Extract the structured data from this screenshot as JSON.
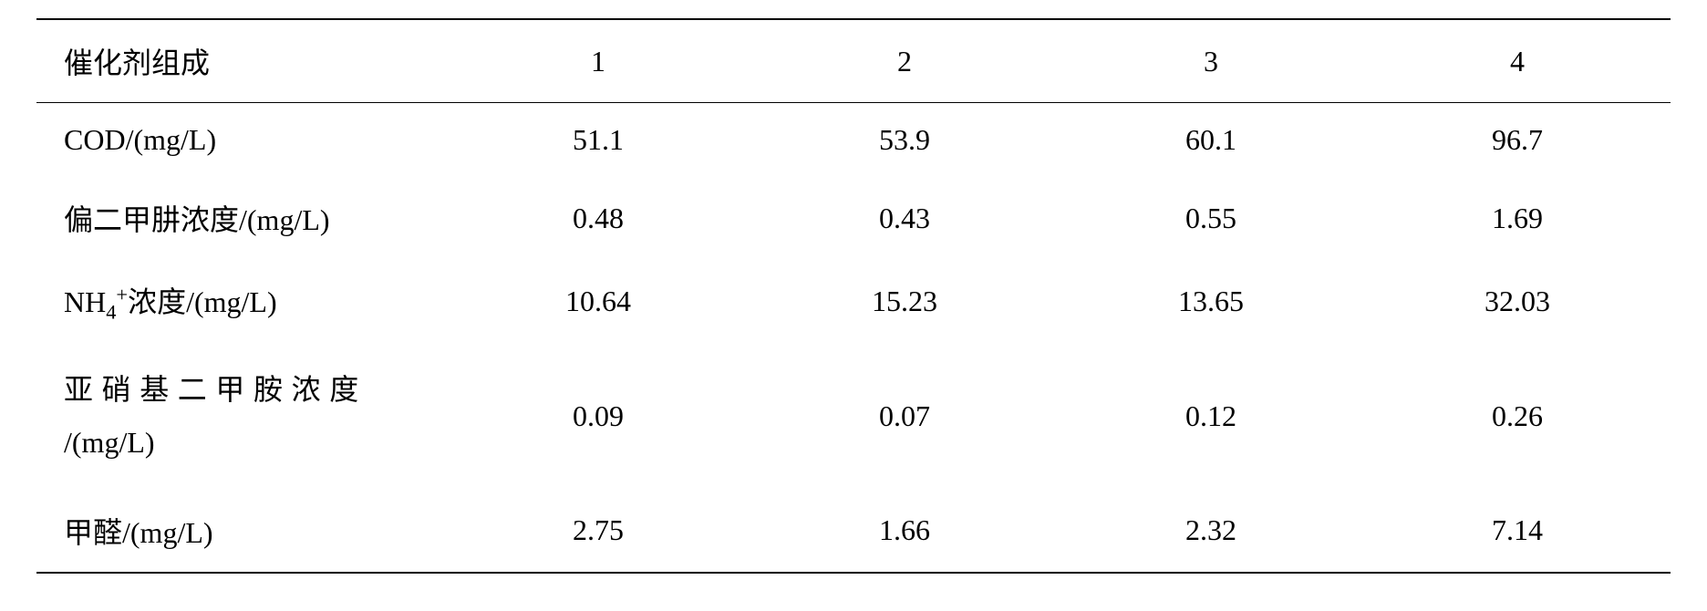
{
  "table": {
    "type": "table",
    "background_color": "#ffffff",
    "text_color": "#000000",
    "border_color": "#000000",
    "font_size": 32,
    "font_family": "Times New Roman, SimSun, serif",
    "columns": [
      {
        "label": "催化剂组成",
        "align": "left",
        "width_percent": 25
      },
      {
        "label": "1",
        "align": "center",
        "width_percent": 18.75
      },
      {
        "label": "2",
        "align": "center",
        "width_percent": 18.75
      },
      {
        "label": "3",
        "align": "center",
        "width_percent": 18.75
      },
      {
        "label": "4",
        "align": "center",
        "width_percent": 18.75
      }
    ],
    "rows": [
      {
        "label": "COD/(mg/L)",
        "values": [
          "51.1",
          "53.9",
          "60.1",
          "96.7"
        ]
      },
      {
        "label": "偏二甲肼浓度/(mg/L)",
        "values": [
          "0.48",
          "0.43",
          "0.55",
          "1.69"
        ]
      },
      {
        "label_html": "NH<sub>4</sub><sup>+</sup>浓度/(mg/L)",
        "label": "NH4+浓度/(mg/L)",
        "values": [
          "10.64",
          "15.23",
          "13.65",
          "32.03"
        ]
      },
      {
        "label_line1": "亚硝基二甲胺浓度",
        "label_line2": "/(mg/L)",
        "label": "亚硝基二甲胺浓度/(mg/L)",
        "values": [
          "0.09",
          "0.07",
          "0.12",
          "0.26"
        ]
      },
      {
        "label": "甲醛/(mg/L)",
        "values": [
          "2.75",
          "1.66",
          "2.32",
          "7.14"
        ]
      }
    ],
    "border_top_width": 2,
    "border_header_width": 1.5,
    "border_bottom_width": 2
  }
}
